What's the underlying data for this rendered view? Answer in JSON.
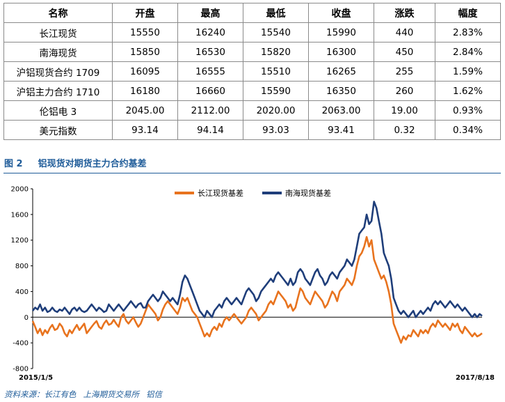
{
  "table": {
    "headers": [
      "名称",
      "开盘",
      "最高",
      "最低",
      "收盘",
      "涨跌",
      "幅度"
    ],
    "rows": [
      [
        "长江现货",
        "15550",
        "16240",
        "15540",
        "15990",
        "440",
        "2.83%"
      ],
      [
        "南海现货",
        "15850",
        "16530",
        "15820",
        "16300",
        "450",
        "2.84%"
      ],
      [
        "沪铝现货合约 1709",
        "16095",
        "16555",
        "15510",
        "16265",
        "255",
        "1.59%"
      ],
      [
        "沪铝主力合约 1710",
        "16180",
        "16660",
        "15590",
        "16350",
        "260",
        "1.62%"
      ],
      [
        "伦铝电 3",
        "2045.00",
        "2112.00",
        "2020.00",
        "2063.00",
        "19.00",
        "0.93%"
      ],
      [
        "美元指数",
        "93.14",
        "94.14",
        "93.03",
        "93.41",
        "0.32",
        "0.34%"
      ]
    ]
  },
  "figure": {
    "number": "图 2",
    "title": "铝现货对期货主力合约基差"
  },
  "chart_data": {
    "type": "line",
    "x_start_label": "2015/1/5",
    "x_end_label": "2017/8/18",
    "x_range": [
      "2015-01-05",
      "2017-08-18"
    ],
    "ylim": [
      -800,
      2000
    ],
    "yticks": [
      2000,
      1600,
      1200,
      800,
      400,
      0,
      -400,
      -800
    ],
    "grid": false,
    "legend_position": "top-center",
    "series": [
      {
        "name": "长江现货基差",
        "color": "#e8731e",
        "values": [
          -60,
          -150,
          -250,
          -180,
          -280,
          -200,
          -250,
          -170,
          -120,
          -200,
          -180,
          -100,
          -150,
          -250,
          -300,
          -200,
          -250,
          -180,
          -120,
          -200,
          -150,
          -100,
          -250,
          -200,
          -150,
          -100,
          -60,
          -150,
          -180,
          -100,
          -50,
          -120,
          -100,
          -40,
          -100,
          -150,
          0,
          50,
          -50,
          -100,
          -50,
          0,
          -80,
          -150,
          -100,
          0,
          100,
          200,
          150,
          100,
          50,
          -50,
          0,
          120,
          200,
          250,
          200,
          150,
          100,
          50,
          150,
          300,
          250,
          300,
          200,
          100,
          50,
          0,
          -100,
          -200,
          -300,
          -250,
          -300,
          -200,
          -150,
          -200,
          -100,
          -150,
          -50,
          0,
          -50,
          0,
          50,
          0,
          -50,
          -100,
          -50,
          0,
          100,
          150,
          100,
          50,
          -50,
          0,
          50,
          100,
          200,
          250,
          200,
          300,
          400,
          350,
          300,
          250,
          150,
          200,
          100,
          150,
          300,
          450,
          400,
          300,
          250,
          200,
          300,
          400,
          350,
          300,
          250,
          150,
          200,
          300,
          400,
          350,
          250,
          400,
          450,
          500,
          600,
          550,
          500,
          600,
          800,
          950,
          1000,
          1100,
          1250,
          1100,
          1200,
          900,
          800,
          700,
          600,
          650,
          550,
          400,
          200,
          -100,
          -200,
          -300,
          -400,
          -300,
          -350,
          -280,
          -300,
          -200,
          -250,
          -300,
          -200,
          -250,
          -200,
          -250,
          -150,
          -100,
          -150,
          -50,
          -100,
          -150,
          -100,
          -150,
          -200,
          -100,
          -150,
          -100,
          -200,
          -250,
          -150,
          -200,
          -250,
          -300,
          -250,
          -300,
          -280,
          -250
        ]
      },
      {
        "name": "南海现货基差",
        "color": "#1f3e7a",
        "values": [
          100,
          150,
          120,
          200,
          100,
          150,
          80,
          100,
          150,
          100,
          80,
          120,
          100,
          150,
          100,
          50,
          120,
          150,
          100,
          150,
          100,
          80,
          100,
          150,
          200,
          150,
          100,
          150,
          120,
          80,
          100,
          200,
          150,
          100,
          150,
          200,
          150,
          100,
          150,
          200,
          250,
          200,
          150,
          200,
          220,
          150,
          150,
          250,
          300,
          350,
          300,
          250,
          300,
          400,
          350,
          300,
          250,
          300,
          250,
          200,
          350,
          550,
          650,
          600,
          500,
          400,
          300,
          200,
          100,
          50,
          0,
          100,
          50,
          0,
          100,
          150,
          200,
          150,
          250,
          300,
          250,
          200,
          250,
          300,
          250,
          200,
          300,
          400,
          450,
          400,
          350,
          250,
          300,
          400,
          450,
          500,
          550,
          600,
          550,
          650,
          700,
          650,
          600,
          550,
          500,
          600,
          500,
          550,
          700,
          750,
          700,
          600,
          550,
          500,
          600,
          700,
          750,
          650,
          600,
          500,
          550,
          650,
          700,
          650,
          600,
          700,
          750,
          800,
          900,
          850,
          800,
          900,
          1100,
          1300,
          1350,
          1400,
          1600,
          1450,
          1500,
          1800,
          1700,
          1500,
          1300,
          1000,
          900,
          800,
          600,
          300,
          200,
          100,
          50,
          100,
          50,
          0,
          50,
          100,
          0,
          50,
          100,
          50,
          100,
          150,
          100,
          200,
          250,
          200,
          250,
          200,
          150,
          200,
          250,
          200,
          150,
          200,
          150,
          100,
          150,
          100,
          50,
          0,
          50,
          0,
          50,
          20
        ]
      }
    ]
  }
}
